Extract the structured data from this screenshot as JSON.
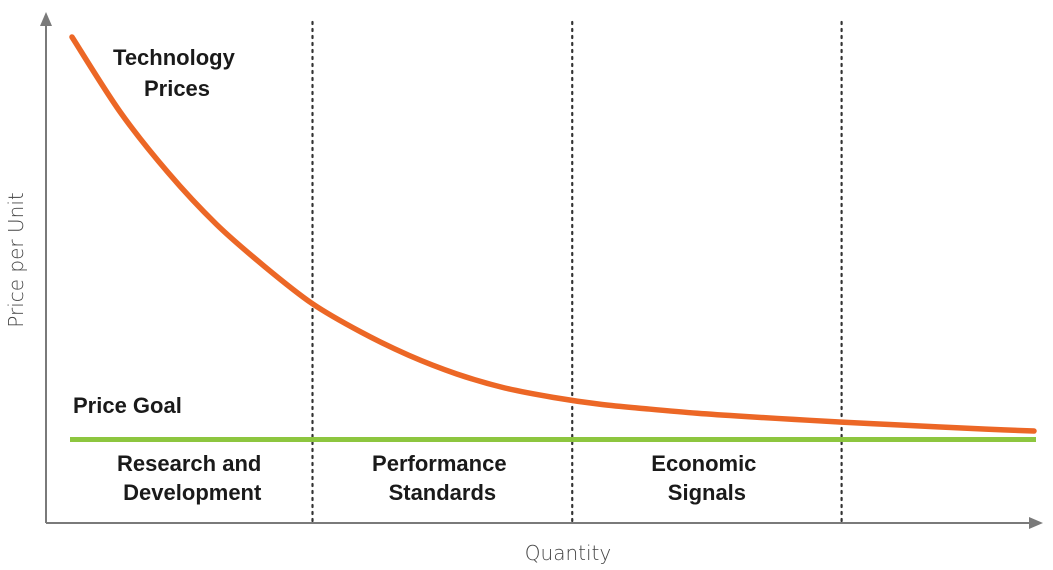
{
  "chart_data": {
    "type": "line",
    "title": "",
    "xlabel": "Quantity",
    "ylabel": "Price per Unit",
    "xlim": [
      0,
      100
    ],
    "ylim": [
      0,
      100
    ],
    "grid": false,
    "series": [
      {
        "name": "Technology Prices",
        "name_lines": [
          "Technology",
          "Prices"
        ],
        "color": "#ec6726",
        "x": [
          0,
          5,
          10,
          15,
          20,
          25,
          30,
          35,
          40,
          45,
          50,
          55,
          60,
          65,
          70,
          75,
          80,
          85,
          90,
          95,
          100
        ],
        "y": [
          100,
          84,
          71,
          60,
          51,
          43,
          37,
          32,
          28,
          25,
          23,
          21.5,
          20.5,
          19.6,
          18.9,
          18.3,
          17.7,
          17.2,
          16.7,
          16.2,
          15.8
        ]
      }
    ],
    "reference_lines": [
      {
        "name": "Price Goal",
        "y": 14,
        "color": "#8dc63f"
      }
    ],
    "dividers_x": [
      25,
      52,
      80
    ],
    "phases": [
      {
        "lines": [
          "Research and",
          "Development"
        ],
        "x_center": 12.5
      },
      {
        "lines": [
          "Performance",
          "Standards"
        ],
        "x_center": 38.5
      },
      {
        "lines": [
          "Economic",
          "Signals"
        ],
        "x_center": 66
      }
    ],
    "axis_color": "#7a7a7a",
    "divider_color": "#333333"
  }
}
